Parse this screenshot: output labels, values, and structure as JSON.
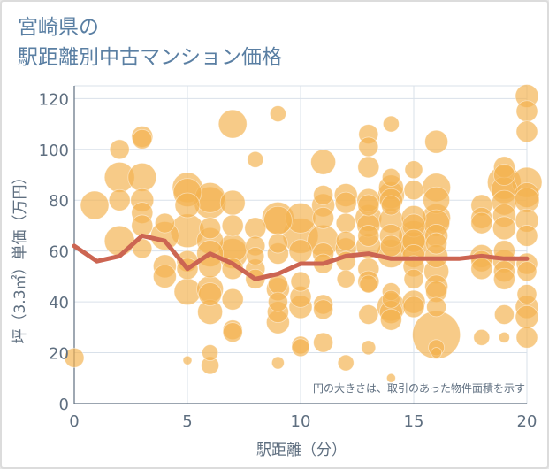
{
  "title_line1": "宮崎県の",
  "title_line2": "駅距離別中古マンション価格",
  "chart_data": {
    "type": "scatter",
    "title": "宮崎県の 駅距離別中古マンション価格",
    "xlabel": "駅距離（分）",
    "ylabel": "坪（3.3㎡）単価（万円）",
    "xlim": [
      0,
      20
    ],
    "ylim": [
      0,
      125
    ],
    "xticks": [
      0,
      5,
      10,
      15,
      20
    ],
    "yticks": [
      0,
      20,
      40,
      60,
      80,
      100,
      120
    ],
    "grid": true,
    "annotation": "円の大きさは、取引のあった物件面積を示す",
    "colors": {
      "bubble": "#f3b34f",
      "line": "#cc6552",
      "grid": "#d9e1ea",
      "axis": "#5f6f80"
    },
    "series": [
      {
        "type": "bubble",
        "points": [
          [
            0,
            18,
            11
          ],
          [
            0.9,
            78,
            16
          ],
          [
            2,
            100,
            11
          ],
          [
            2,
            89,
            17
          ],
          [
            2,
            80,
            12
          ],
          [
            2,
            64,
            17
          ],
          [
            3,
            105,
            12
          ],
          [
            3,
            104,
            11
          ],
          [
            3,
            89,
            16
          ],
          [
            3,
            80,
            13
          ],
          [
            3,
            75,
            12
          ],
          [
            3,
            70,
            12
          ],
          [
            3,
            61,
            11
          ],
          [
            4,
            71,
            11
          ],
          [
            4,
            66,
            16
          ],
          [
            4,
            54,
            13
          ],
          [
            4,
            50,
            13
          ],
          [
            5,
            85,
            17
          ],
          [
            5,
            83,
            16
          ],
          [
            5,
            78,
            14
          ],
          [
            5,
            68,
            19
          ],
          [
            5,
            56,
            12
          ],
          [
            5,
            53,
            12
          ],
          [
            5,
            44,
            15
          ],
          [
            5,
            17,
            5
          ],
          [
            6,
            81,
            17
          ],
          [
            6,
            79,
            18
          ],
          [
            6,
            69,
            12
          ],
          [
            6,
            64,
            15
          ],
          [
            6,
            59,
            15
          ],
          [
            6,
            54,
            13
          ],
          [
            6,
            45,
            15
          ],
          [
            6,
            43,
            13
          ],
          [
            6,
            36,
            14
          ],
          [
            6,
            20,
            9
          ],
          [
            6,
            15,
            10
          ],
          [
            7,
            110,
            16
          ],
          [
            7,
            79,
            14
          ],
          [
            7,
            70,
            12
          ],
          [
            7,
            61,
            16
          ],
          [
            7,
            59,
            17
          ],
          [
            7,
            53,
            12
          ],
          [
            7,
            41,
            12
          ],
          [
            7,
            29,
            11
          ],
          [
            7,
            28,
            11
          ],
          [
            8,
            96,
            9
          ],
          [
            8,
            69,
            12
          ],
          [
            8,
            62,
            11
          ],
          [
            8,
            58,
            10
          ],
          [
            8,
            53,
            11
          ],
          [
            8,
            49,
            11
          ],
          [
            9,
            114,
            9
          ],
          [
            9,
            73,
            18
          ],
          [
            9,
            72,
            16
          ],
          [
            9,
            63,
            11
          ],
          [
            9,
            59,
            12
          ],
          [
            9,
            47,
            11
          ],
          [
            9,
            45,
            13
          ],
          [
            9,
            40,
            11
          ],
          [
            9,
            36,
            12
          ],
          [
            9,
            32,
            13
          ],
          [
            9,
            16,
            7
          ],
          [
            10,
            73,
            17
          ],
          [
            10,
            66,
            20
          ],
          [
            10,
            60,
            13
          ],
          [
            10,
            48,
            11
          ],
          [
            10,
            42,
            12
          ],
          [
            10,
            38,
            13
          ],
          [
            10,
            23,
            10
          ],
          [
            10,
            22,
            10
          ],
          [
            11,
            95,
            14
          ],
          [
            11,
            82,
            11
          ],
          [
            11,
            78,
            13
          ],
          [
            11,
            73,
            12
          ],
          [
            11,
            64,
            18
          ],
          [
            11,
            59,
            12
          ],
          [
            11,
            55,
            11
          ],
          [
            11,
            39,
            11
          ],
          [
            11,
            37,
            11
          ],
          [
            11,
            24,
            11
          ],
          [
            12,
            82,
            13
          ],
          [
            12,
            79,
            12
          ],
          [
            12,
            71,
            11
          ],
          [
            12,
            64,
            11
          ],
          [
            12,
            61,
            12
          ],
          [
            12,
            56,
            11
          ],
          [
            12,
            49,
            10
          ],
          [
            12,
            16,
            9
          ],
          [
            13,
            106,
            11
          ],
          [
            13,
            101,
            11
          ],
          [
            13,
            93,
            12
          ],
          [
            13,
            80,
            13
          ],
          [
            13,
            78,
            12
          ],
          [
            13,
            73,
            15
          ],
          [
            13,
            70,
            13
          ],
          [
            13,
            66,
            12
          ],
          [
            13,
            62,
            14
          ],
          [
            13,
            53,
            12
          ],
          [
            13,
            48,
            12
          ],
          [
            13,
            47,
            10
          ],
          [
            13,
            35,
            11
          ],
          [
            13,
            22,
            8
          ],
          [
            14,
            110,
            9
          ],
          [
            14,
            89,
            10
          ],
          [
            14,
            85,
            14
          ],
          [
            14,
            82,
            15
          ],
          [
            14,
            80,
            13
          ],
          [
            14,
            78,
            11
          ],
          [
            14,
            72,
            14
          ],
          [
            14,
            66,
            13
          ],
          [
            14,
            62,
            12
          ],
          [
            14,
            59,
            16
          ],
          [
            14,
            44,
            10
          ],
          [
            14,
            41,
            10
          ],
          [
            14,
            38,
            16
          ],
          [
            14,
            36,
            13
          ],
          [
            14,
            33,
            12
          ],
          [
            14,
            10,
            5
          ],
          [
            15,
            92,
            10
          ],
          [
            15,
            84,
            11
          ],
          [
            15,
            73,
            14
          ],
          [
            15,
            70,
            13
          ],
          [
            15,
            66,
            17
          ],
          [
            15,
            64,
            13
          ],
          [
            15,
            62,
            16
          ],
          [
            15,
            58,
            13
          ],
          [
            15,
            54,
            12
          ],
          [
            15,
            49,
            11
          ],
          [
            15,
            40,
            13
          ],
          [
            15,
            38,
            12
          ],
          [
            16,
            103,
            13
          ],
          [
            16,
            85,
            16
          ],
          [
            16,
            80,
            15
          ],
          [
            16,
            73,
            16
          ],
          [
            16,
            71,
            15
          ],
          [
            16,
            66,
            13
          ],
          [
            16,
            63,
            12
          ],
          [
            16,
            58,
            13
          ],
          [
            16,
            52,
            14
          ],
          [
            16,
            46,
            13
          ],
          [
            16,
            44,
            12
          ],
          [
            16,
            38,
            11
          ],
          [
            16,
            27,
            27
          ],
          [
            16,
            22,
            9
          ],
          [
            16,
            20,
            6
          ],
          [
            18,
            78,
            12
          ],
          [
            18,
            73,
            12
          ],
          [
            18,
            71,
            12
          ],
          [
            18,
            58,
            13
          ],
          [
            18,
            56,
            12
          ],
          [
            18,
            53,
            12
          ],
          [
            18,
            26,
            9
          ],
          [
            19,
            93,
            12
          ],
          [
            19,
            90,
            12
          ],
          [
            19,
            87,
            19
          ],
          [
            19,
            84,
            15
          ],
          [
            19,
            79,
            14
          ],
          [
            19,
            74,
            13
          ],
          [
            19,
            69,
            13
          ],
          [
            19,
            60,
            12
          ],
          [
            19,
            56,
            13
          ],
          [
            19,
            52,
            12
          ],
          [
            19,
            49,
            12
          ],
          [
            19,
            35,
            11
          ],
          [
            19,
            26,
            6
          ],
          [
            20,
            121,
            13
          ],
          [
            20,
            115,
            12
          ],
          [
            20,
            107,
            12
          ],
          [
            20,
            87,
            17
          ],
          [
            20,
            82,
            14
          ],
          [
            20,
            80,
            14
          ],
          [
            20,
            72,
            13
          ],
          [
            20,
            66,
            12
          ],
          [
            20,
            55,
            12
          ],
          [
            20,
            52,
            11
          ],
          [
            20,
            43,
            11
          ],
          [
            20,
            38,
            13
          ],
          [
            20,
            34,
            13
          ],
          [
            20,
            26,
            12
          ]
        ]
      },
      {
        "type": "line",
        "x": [
          0,
          1,
          2,
          3,
          4,
          5,
          6,
          7,
          8,
          9,
          10,
          11,
          12,
          13,
          14,
          15,
          16,
          17,
          18,
          19,
          20
        ],
        "y": [
          62,
          56,
          58,
          66,
          64,
          53,
          59,
          55,
          49,
          51,
          55,
          55,
          58,
          59,
          57,
          57,
          57,
          57,
          58,
          57,
          57
        ]
      }
    ]
  }
}
